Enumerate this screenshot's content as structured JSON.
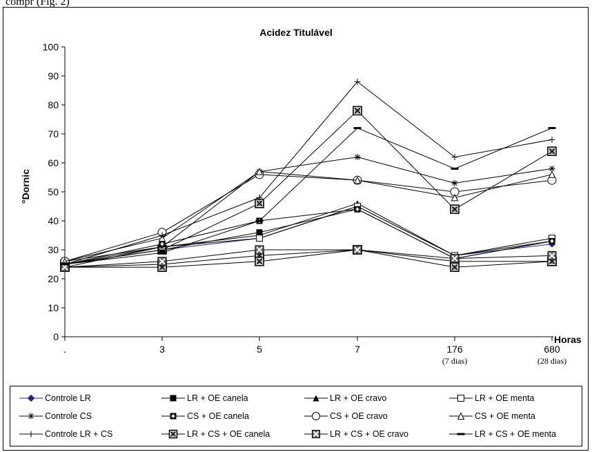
{
  "top_text": "compr                                          (Fig. 2)",
  "chart_data": {
    "type": "line",
    "title": "Acidez Titulável",
    "ylabel": "°Dornic",
    "xlabel": "Horas",
    "ylim": [
      0,
      100
    ],
    "yticks": [
      0,
      10,
      20,
      30,
      40,
      50,
      60,
      70,
      80,
      90,
      100
    ],
    "categories": [
      ".",
      "3",
      "5",
      "7",
      "176",
      "680"
    ],
    "category_sublabels": [
      "",
      "",
      "",
      "",
      "(7 dias)",
      "(28 dias)"
    ],
    "grid": false,
    "legend_position": "bottom",
    "series": [
      {
        "name": "Controle LR",
        "marker": "diamond-filled",
        "values": [
          25,
          30,
          34,
          45,
          28,
          32
        ]
      },
      {
        "name": "LR + OE canela",
        "marker": "square-filled",
        "values": [
          25,
          30,
          36,
          44,
          27,
          33
        ]
      },
      {
        "name": "LR + OE cravo",
        "marker": "triangle-filled",
        "values": [
          24,
          31,
          35,
          46,
          28,
          33
        ]
      },
      {
        "name": "LR + OE menta",
        "marker": "square-open",
        "values": [
          26,
          31,
          34,
          45,
          28,
          34
        ]
      },
      {
        "name": "Controle CS",
        "marker": "asterisk",
        "values": [
          25,
          31,
          57,
          62,
          53,
          58
        ]
      },
      {
        "name": "CS + OE canela",
        "marker": "square-plus",
        "values": [
          25,
          32,
          40,
          44,
          27,
          33
        ]
      },
      {
        "name": "CS + OE cravo",
        "marker": "circle-open",
        "values": [
          26,
          36,
          56,
          54,
          50,
          54
        ]
      },
      {
        "name": "CS + OE menta",
        "marker": "triangle-open",
        "values": [
          26,
          34,
          57,
          54,
          48,
          56
        ]
      },
      {
        "name": "Controle LR + CS",
        "marker": "plus",
        "values": [
          25,
          35,
          48,
          88,
          62,
          68
        ]
      },
      {
        "name": "LR + CS + OE canela",
        "marker": "square-x",
        "values": [
          24,
          24,
          26,
          30,
          24,
          26
        ]
      },
      {
        "name": "LR + CS + OE cravo",
        "marker": "square-x-bold",
        "values": [
          24,
          26,
          30,
          30,
          27,
          28
        ]
      },
      {
        "name": "LR + CS + OE menta",
        "marker": "dash",
        "values": [
          25,
          29,
          40,
          72,
          58,
          72
        ]
      }
    ],
    "extra_series": [
      {
        "marker": "square-x",
        "values": [
          25,
          30,
          46,
          78,
          44,
          64
        ]
      },
      {
        "marker": "square-x",
        "values": [
          24,
          25,
          28,
          30,
          26,
          26
        ]
      }
    ]
  }
}
